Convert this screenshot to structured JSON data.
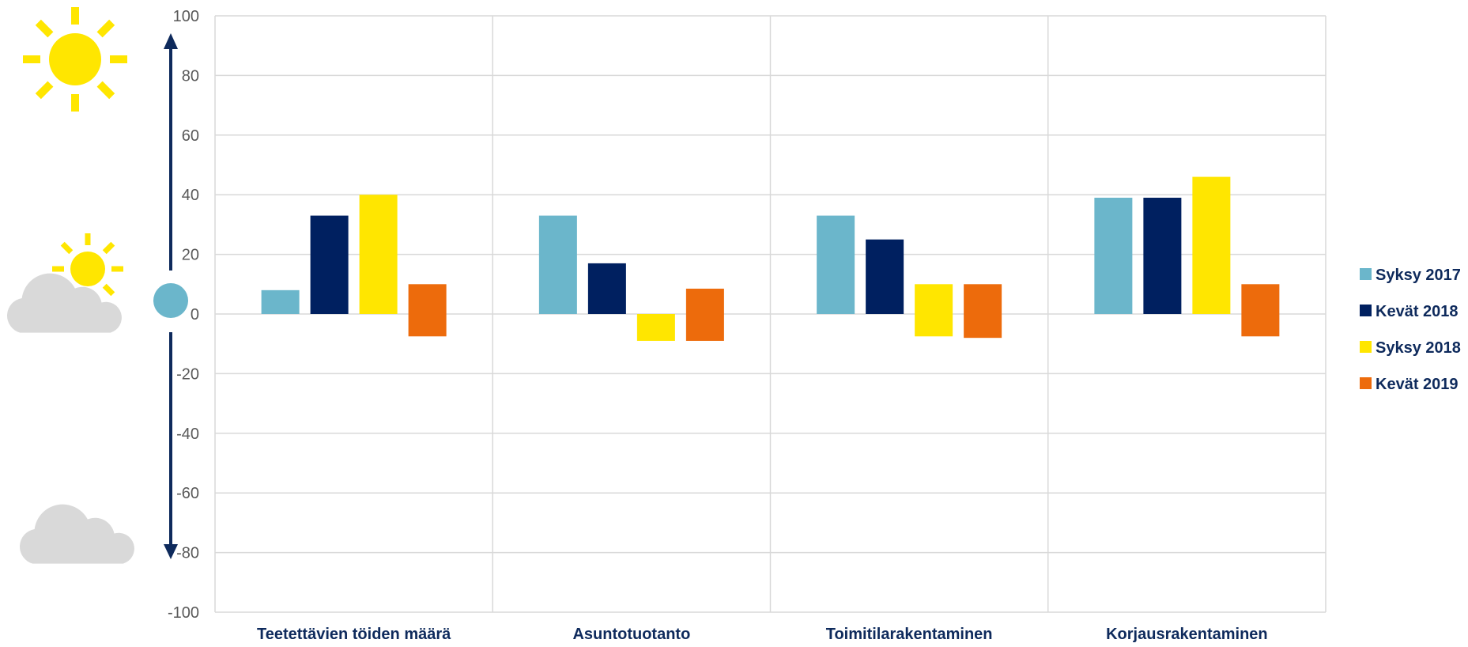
{
  "chart_data": {
    "type": "bar",
    "categories": [
      "Teetettävien töiden määrä",
      "Asuntotuotanto",
      "Toimitilarakentaminen",
      "Korjausrakentaminen"
    ],
    "series": [
      {
        "name": "Syksy 2017",
        "color": "#6bb6cb",
        "values": [
          8,
          33,
          33,
          39
        ]
      },
      {
        "name": "Kevät 2018",
        "color": "#002060",
        "values": [
          33,
          17,
          25,
          39
        ]
      },
      {
        "name": "Syksy 2018",
        "color": "#ffe600",
        "values": [
          40,
          -9,
          10,
          46
        ]
      },
      {
        "name": "Kevät 2019",
        "color": "#ed6b0c",
        "values": [
          10,
          -9,
          -8,
          10
        ]
      }
    ],
    "bar_ranges": [
      {
        "series": "Kevät 2019",
        "category": "Teetettävien töiden määrä",
        "low": -7.5,
        "high": 10
      },
      {
        "series": "Kevät 2019",
        "category": "Asuntotuotanto",
        "low": -9,
        "high": 8.5
      },
      {
        "series": "Syksy 2018",
        "category": "Toimitilarakentaminen",
        "low": -7.5,
        "high": 10
      },
      {
        "series": "Kevät 2019",
        "category": "Toimitilarakentaminen",
        "low": -8,
        "high": 10
      },
      {
        "series": "Kevät 2019",
        "category": "Korjausrakentaminen",
        "low": -7.5,
        "high": 10
      }
    ],
    "title": "",
    "xlabel": "",
    "ylabel": "",
    "ylim": [
      -100,
      100
    ],
    "yticks": [
      100,
      80,
      60,
      40,
      20,
      0,
      -20,
      -40,
      -60,
      -80,
      -100
    ],
    "grid": true,
    "legend_position": "right",
    "indicator": {
      "icons": [
        "sun-icon",
        "sun-cloud-icon",
        "cloud-icon"
      ],
      "arrow": "double-arrow-vertical",
      "marker_value": 0
    },
    "colors": {
      "axis_text": "#595959",
      "category_text": "#0e2a5c",
      "grid": "#d9d9d9",
      "arrow": "#0e2a5c",
      "sun": "#ffe600",
      "cloud": "#d9d9d9",
      "marker": "#6bb6cb"
    }
  }
}
